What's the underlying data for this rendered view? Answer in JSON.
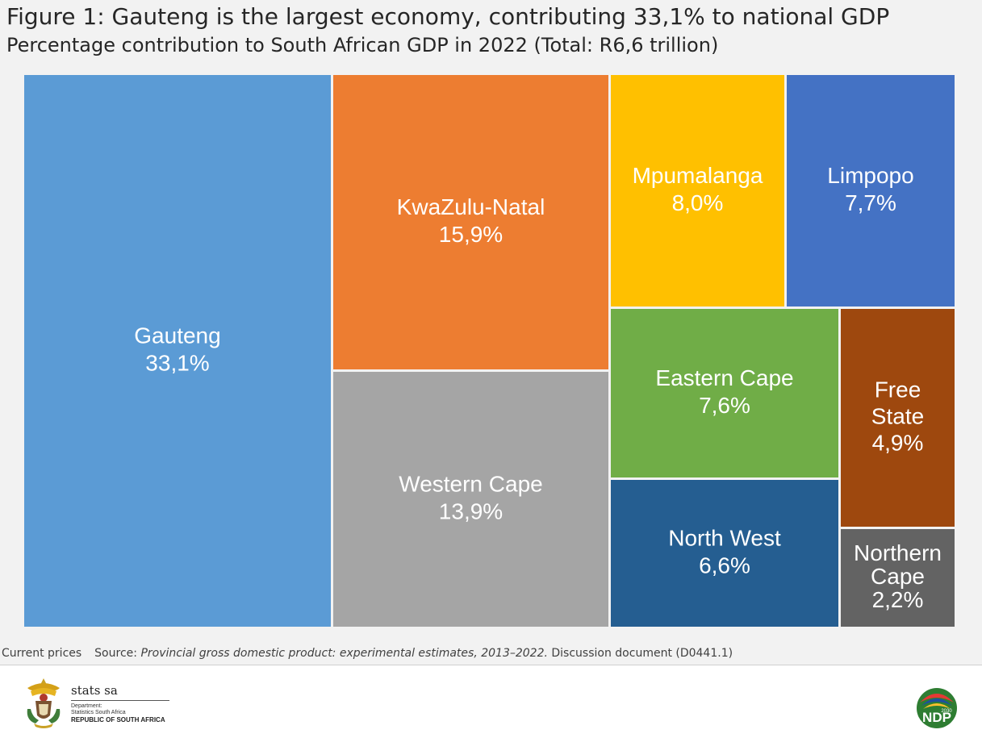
{
  "title": "Figure 1: Gauteng is the largest economy, contributing 33,1% to national GDP",
  "subtitle": "Percentage contribution to South African GDP in 2022 (Total: R6,6 trillion)",
  "footnote": {
    "prefix": "Current prices",
    "source_label": "Source:",
    "source_title": "Provincial gross domestic product: experimental estimates, 2013–2022.",
    "source_suffix": "Discussion document (D0441.1)"
  },
  "branding": {
    "org_name": "stats sa",
    "org_dept": "Department:",
    "org_sub": "Statistics South Africa",
    "org_country": "REPUBLIC OF SOUTH AFRICA",
    "right_logo_text": "NDP",
    "right_logo_year": "2030"
  },
  "chart_data": {
    "type": "treemap",
    "unit": "%",
    "items": [
      {
        "name": "Gauteng",
        "label_lines": [
          "Gauteng",
          "33,1%"
        ],
        "value": 33.1,
        "color": "#5b9bd5"
      },
      {
        "name": "KwaZulu-Natal",
        "label_lines": [
          "KwaZulu-Natal",
          "15,9%"
        ],
        "value": 15.9,
        "color": "#ed7d31"
      },
      {
        "name": "Western Cape",
        "label_lines": [
          "Western Cape",
          "13,9%"
        ],
        "value": 13.9,
        "color": "#a5a5a5"
      },
      {
        "name": "Mpumalanga",
        "label_lines": [
          "Mpumalanga",
          "8,0%"
        ],
        "value": 8.0,
        "color": "#ffc000"
      },
      {
        "name": "Limpopo",
        "label_lines": [
          "Limpopo",
          "7,7%"
        ],
        "value": 7.7,
        "color": "#4472c4"
      },
      {
        "name": "Eastern Cape",
        "label_lines": [
          "Eastern Cape",
          "7,6%"
        ],
        "value": 7.6,
        "color": "#70ad47"
      },
      {
        "name": "North West",
        "label_lines": [
          "North West",
          "6,6%"
        ],
        "value": 6.6,
        "color": "#255e91"
      },
      {
        "name": "Free State",
        "label_lines": [
          "Free",
          "State",
          "4,9%"
        ],
        "value": 4.9,
        "color": "#9e480e"
      },
      {
        "name": "Northern Cape",
        "label_lines": [
          "Northern",
          "Cape",
          "2,2%"
        ],
        "value": 2.2,
        "color": "#636363"
      }
    ]
  }
}
